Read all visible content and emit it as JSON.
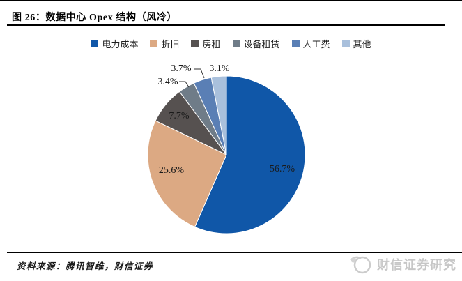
{
  "page": {
    "title": "图 26：数据中心 Opex 结构（风冷）",
    "source": "资料来源：腾讯智维，财信证券",
    "watermark": "财信证券研究"
  },
  "chart_data": {
    "type": "pie",
    "title": "数据中心 Opex 结构（风冷）",
    "categories": [
      "电力成本",
      "折旧",
      "房租",
      "设备租赁",
      "人工费",
      "其他"
    ],
    "values": [
      56.7,
      25.6,
      7.7,
      3.4,
      3.7,
      3.1
    ],
    "unit": "%",
    "colors": [
      "#1057A8",
      "#DCA983",
      "#565150",
      "#6F7C88",
      "#5A7FB5",
      "#A9C0DC"
    ],
    "legend_position": "top-center",
    "start_angle_deg": 0,
    "direction": "clockwise",
    "label_color": "#1a1a1a",
    "leader_line_color": "#333333"
  }
}
